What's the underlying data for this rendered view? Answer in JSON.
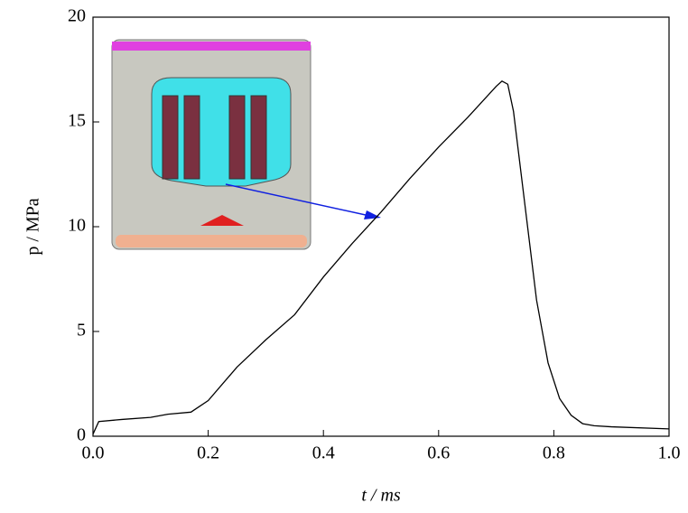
{
  "chart_data": {
    "type": "line",
    "xlabel": "t / ms",
    "ylabel": "p / MPa",
    "xlim": [
      0,
      1
    ],
    "ylim": [
      0,
      20
    ],
    "xticks": [
      {
        "value": 0,
        "label": "0.0"
      },
      0.2,
      0.4,
      0.6,
      0.8,
      {
        "value": 1,
        "label": "1.0"
      }
    ],
    "yticks": [
      0,
      5,
      10,
      15,
      20
    ],
    "x": [
      0,
      0.01,
      0.05,
      0.1,
      0.13,
      0.17,
      0.2,
      0.25,
      0.3,
      0.35,
      0.4,
      0.45,
      0.5,
      0.55,
      0.6,
      0.65,
      0.7,
      0.71,
      0.72,
      0.73,
      0.75,
      0.77,
      0.79,
      0.81,
      0.83,
      0.85,
      0.87,
      0.9,
      1.0
    ],
    "series": [
      {
        "color": "#000000",
        "values": [
          0.1,
          0.7,
          0.8,
          0.9,
          1.05,
          1.15,
          1.7,
          3.3,
          4.6,
          5.8,
          7.6,
          9.2,
          10.7,
          12.3,
          13.8,
          15.2,
          16.7,
          16.95,
          16.8,
          15.5,
          11,
          6.5,
          3.5,
          1.8,
          1.0,
          0.6,
          0.5,
          0.45,
          0.35
        ]
      }
    ]
  }
}
